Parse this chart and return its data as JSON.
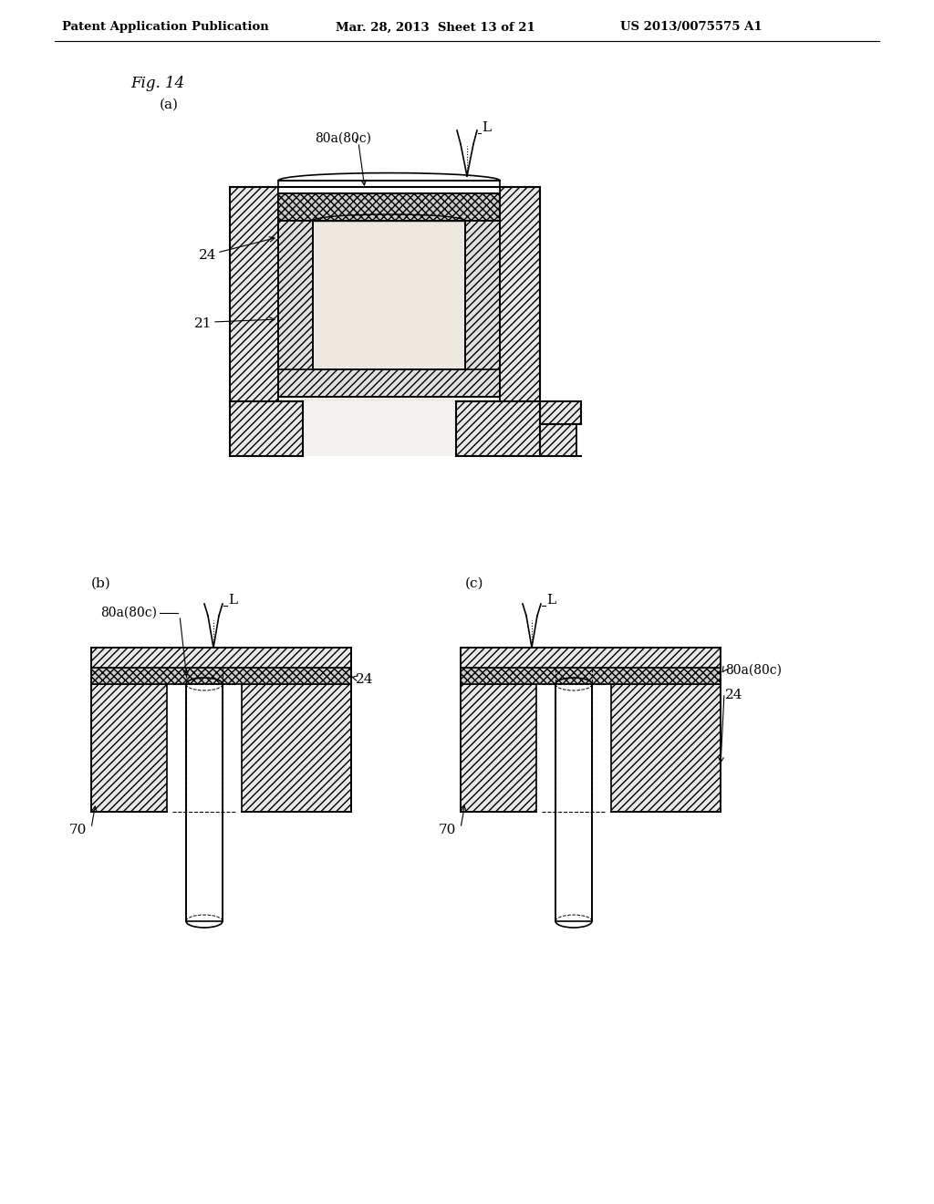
{
  "header_left": "Patent Application Publication",
  "header_mid": "Mar. 28, 2013  Sheet 13 of 21",
  "header_right": "US 2013/0075575 A1",
  "fig_label": "Fig. 14",
  "sub_a": "(a)",
  "sub_b": "(b)",
  "sub_c": "(c)",
  "bg_color": "#ffffff",
  "line_color": "#000000"
}
